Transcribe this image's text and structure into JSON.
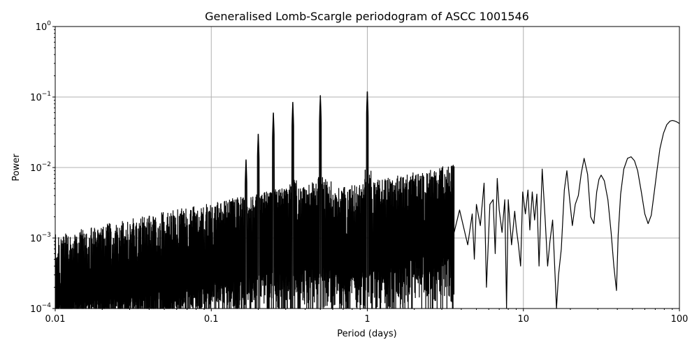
{
  "chart_data": {
    "type": "line",
    "title": "Generalised Lomb-Scargle periodogram of ASCC 1001546",
    "xlabel": "Period (days)",
    "ylabel": "Power",
    "x_scale": "log",
    "y_scale": "log",
    "xlim": [
      0.01,
      100
    ],
    "ylim": [
      0.0001,
      1
    ],
    "grid": true,
    "x_ticks": [
      {
        "value": 0.01,
        "label": "0.01"
      },
      {
        "value": 0.1,
        "label": "0.1"
      },
      {
        "value": 1,
        "label": "1"
      },
      {
        "value": 10,
        "label": "10"
      },
      {
        "value": 100,
        "label": "100"
      }
    ],
    "y_ticks": [
      {
        "value": 0.0001,
        "base": "10",
        "exp": "−4"
      },
      {
        "value": 0.001,
        "base": "10",
        "exp": "−3"
      },
      {
        "value": 0.01,
        "base": "10",
        "exp": "−2"
      },
      {
        "value": 0.1,
        "base": "10",
        "exp": "−1"
      },
      {
        "value": 1,
        "base": "10",
        "exp": "0"
      }
    ],
    "peaks": [
      {
        "period": 1.0,
        "power": 0.12
      },
      {
        "period": 0.5,
        "power": 0.105
      },
      {
        "period": 0.333,
        "power": 0.085
      },
      {
        "period": 0.25,
        "power": 0.06
      },
      {
        "period": 0.2,
        "power": 0.03
      },
      {
        "period": 0.167,
        "power": 0.013
      }
    ],
    "series": [
      {
        "color": "#000000",
        "x": [
          3.6,
          3.9,
          4.4,
          4.7,
          4.85,
          5.0,
          5.3,
          5.6,
          5.8,
          6.1,
          6.4,
          6.6,
          6.8,
          7.0,
          7.3,
          7.6,
          7.8,
          8.0,
          8.4,
          8.8,
          9.0,
          9.3,
          9.6,
          9.9,
          10.3,
          10.7,
          11.0,
          11.4,
          11.8,
          12.2,
          12.6,
          13.2,
          13.8,
          14.3,
          14.8,
          15.4,
          15.8,
          16.3,
          16.8,
          17.5,
          18.3,
          19.0,
          19.8,
          20.6,
          21.5,
          22.5,
          23.5,
          24.5,
          25.8,
          27.0,
          28.3,
          29.5,
          30.5,
          31.5,
          33.0,
          34.8,
          36.5,
          38.0,
          39.5,
          40.5,
          42.0,
          44.0,
          46.5,
          49.0,
          51.5,
          54.0,
          57.0,
          60.0,
          63.0,
          66.0,
          69.0,
          72.0,
          75.0,
          79.0,
          83.0,
          87.0,
          90.0,
          93.0,
          96.0,
          100.0
        ],
        "y": [
          0.0012,
          0.0025,
          0.0008,
          0.0022,
          0.0005,
          0.003,
          0.0015,
          0.006,
          0.0002,
          0.003,
          0.0035,
          0.0006,
          0.007,
          0.0025,
          0.0012,
          0.0035,
          0.0001,
          0.0035,
          0.0008,
          0.0024,
          0.0014,
          0.0008,
          0.0004,
          0.0045,
          0.0022,
          0.0048,
          0.0013,
          0.0045,
          0.0018,
          0.0042,
          0.0004,
          0.0095,
          0.0018,
          0.0004,
          0.0009,
          0.0018,
          0.0005,
          0.0001,
          0.0003,
          0.0007,
          0.0048,
          0.009,
          0.0035,
          0.0015,
          0.003,
          0.004,
          0.0083,
          0.0135,
          0.008,
          0.002,
          0.0016,
          0.0045,
          0.0068,
          0.0078,
          0.0065,
          0.0035,
          0.0012,
          0.0004,
          0.00018,
          0.0011,
          0.0042,
          0.0095,
          0.0135,
          0.0142,
          0.0125,
          0.009,
          0.0045,
          0.0022,
          0.0016,
          0.0021,
          0.0045,
          0.0095,
          0.0185,
          0.0305,
          0.0405,
          0.0455,
          0.0465,
          0.0458,
          0.0445,
          0.042
        ]
      }
    ]
  }
}
